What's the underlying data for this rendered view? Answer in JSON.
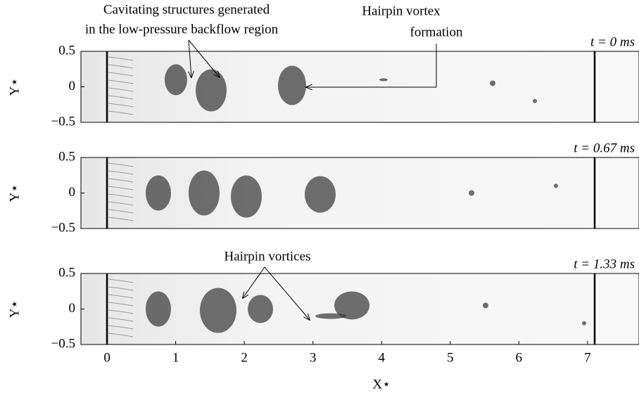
{
  "chart_data": [
    {
      "type": "image",
      "title": "t = 0 ms",
      "ylabel": "Y⋆",
      "xlim": [
        -0.38,
        7.75
      ],
      "ylim": [
        -0.5,
        0.5
      ],
      "yticks": [
        {
          "value": -0.5,
          "label": "−0.5"
        },
        0,
        0.5
      ],
      "annotations": [
        "Cavitating structures generated",
        "in the low-pressure backflow region",
        "Hairpin vortex",
        "formation"
      ]
    },
    {
      "type": "image",
      "title": "t = 0.67 ms",
      "ylabel": "Y⋆",
      "xlim": [
        -0.38,
        7.75
      ],
      "ylim": [
        -0.5,
        0.5
      ],
      "yticks": [
        {
          "value": -0.5,
          "label": "−0.5"
        },
        0,
        0.5
      ]
    },
    {
      "type": "image",
      "title": "t = 1.33 ms",
      "ylabel": "Y⋆",
      "xlabel": "X⋆",
      "xlim": [
        -0.38,
        7.75
      ],
      "ylim": [
        -0.5,
        0.5
      ],
      "yticks": [
        {
          "value": -0.5,
          "label": "−0.5"
        },
        0,
        0.5
      ],
      "xticks": [
        0,
        1,
        2,
        3,
        4,
        5,
        6,
        7
      ],
      "annotations": [
        "Hairpin vortices"
      ]
    }
  ]
}
